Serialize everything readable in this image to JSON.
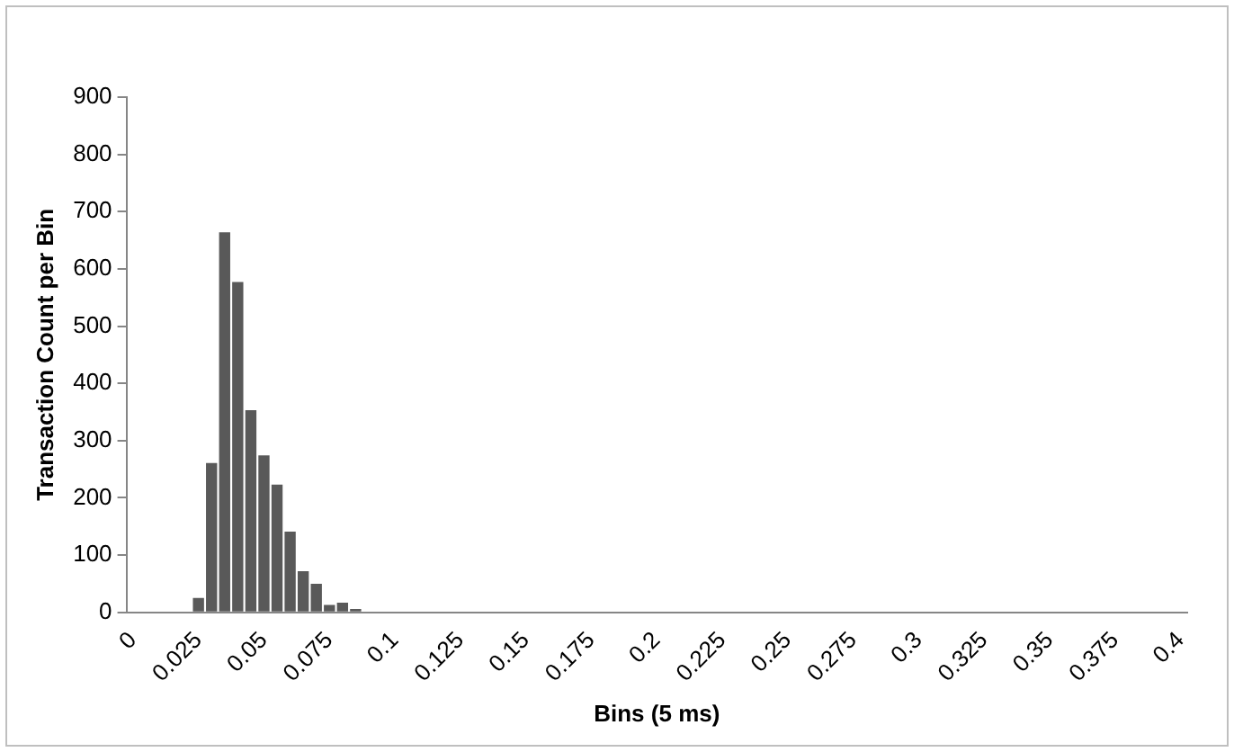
{
  "chart_data": {
    "type": "bar",
    "xlabel": "Bins (5 ms)",
    "ylabel": "Transaction Count per Bin",
    "categories": [
      "0",
      null,
      null,
      null,
      null,
      "0.025",
      null,
      null,
      null,
      null,
      "0.05",
      null,
      null,
      null,
      null,
      "0.075",
      null,
      null,
      null,
      null,
      "0.1",
      null,
      null,
      null,
      null,
      "0.125",
      null,
      null,
      null,
      null,
      "0.15",
      null,
      null,
      null,
      null,
      "0.175",
      null,
      null,
      null,
      null,
      "0.2",
      null,
      null,
      null,
      null,
      "0.225",
      null,
      null,
      null,
      null,
      "0.25",
      null,
      null,
      null,
      null,
      "0.275",
      null,
      null,
      null,
      null,
      "0.3",
      null,
      null,
      null,
      null,
      "0.325",
      null,
      null,
      null,
      null,
      "0.35",
      null,
      null,
      null,
      null,
      "0.375",
      null,
      null,
      null,
      null,
      "0.4"
    ],
    "values": [
      0,
      0,
      0,
      0,
      0,
      25,
      261,
      664,
      577,
      353,
      274,
      223,
      141,
      72,
      50,
      13,
      17,
      6,
      0,
      0,
      0,
      0,
      0,
      0,
      0,
      0,
      0,
      0,
      0,
      0,
      0,
      0,
      0,
      0,
      0,
      0,
      0,
      0,
      0,
      0,
      0,
      0,
      0,
      0,
      0,
      0,
      0,
      0,
      0,
      0,
      0,
      0,
      0,
      0,
      0,
      0,
      0,
      0,
      0,
      0,
      0,
      0,
      0,
      0,
      0,
      0,
      0,
      0,
      0,
      0,
      0,
      0,
      0,
      0,
      0,
      0,
      0,
      0,
      0,
      0,
      0
    ],
    "color": "#595959",
    "ylim": [
      0,
      900
    ],
    "yticks": [
      0,
      100,
      200,
      300,
      400,
      500,
      600,
      700,
      800,
      900
    ],
    "grid": false,
    "legend": false
  }
}
